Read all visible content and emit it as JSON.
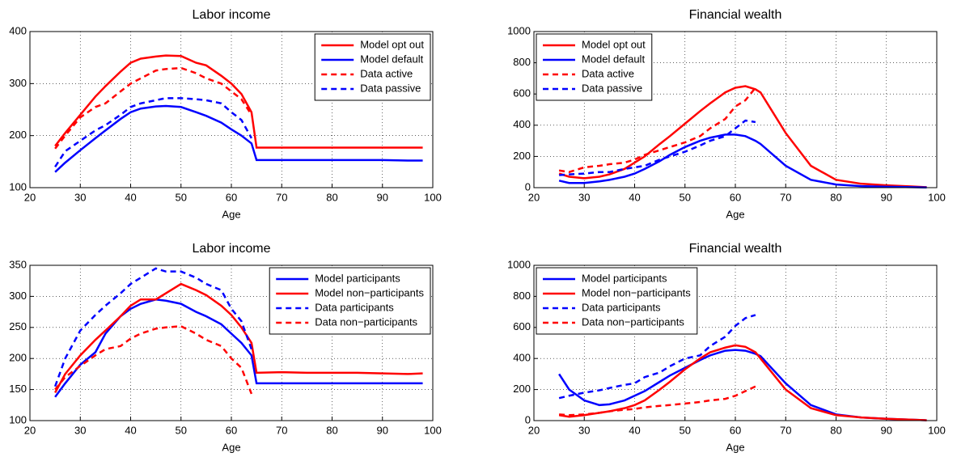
{
  "chart_data": [
    {
      "type": "line",
      "title": "Labor income",
      "x_label": "Age",
      "x": [
        25,
        27,
        30,
        33,
        35,
        38,
        40,
        42,
        45,
        47,
        50,
        53,
        55,
        58,
        60,
        62,
        64,
        65,
        70,
        75,
        80,
        85,
        90,
        95,
        98
      ],
      "xlim": [
        20,
        100
      ],
      "xticks": [
        20,
        30,
        40,
        50,
        60,
        70,
        80,
        90,
        100
      ],
      "ylim": [
        100,
        400
      ],
      "yticks": [
        100,
        200,
        300,
        400
      ],
      "grid": true,
      "legend": "upper right",
      "series": [
        {
          "name": "Model opt out",
          "color": "#ff0000",
          "style": "solid",
          "values": [
            180,
            205,
            240,
            275,
            295,
            323,
            340,
            348,
            352,
            354,
            353,
            340,
            335,
            315,
            300,
            280,
            245,
            177,
            177,
            177,
            177,
            177,
            177,
            177,
            177
          ]
        },
        {
          "name": "Model default",
          "color": "#0000ff",
          "style": "solid",
          "values": [
            130,
            148,
            172,
            195,
            210,
            232,
            245,
            252,
            256,
            257,
            255,
            245,
            238,
            225,
            212,
            200,
            185,
            153,
            153,
            153,
            153,
            153,
            153,
            152,
            152
          ]
        },
        {
          "name": "Data active",
          "color": "#ff0000",
          "style": "dashed",
          "values": [
            175,
            200,
            235,
            255,
            262,
            285,
            300,
            310,
            325,
            328,
            330,
            320,
            310,
            300,
            285,
            270,
            240,
            null,
            null,
            null,
            null,
            null,
            null,
            null,
            null
          ]
        },
        {
          "name": "Data passive",
          "color": "#0000ff",
          "style": "dashed",
          "values": [
            140,
            170,
            190,
            210,
            220,
            240,
            255,
            262,
            268,
            272,
            272,
            270,
            268,
            262,
            245,
            230,
            195,
            null,
            null,
            null,
            null,
            null,
            null,
            null,
            null
          ]
        }
      ]
    },
    {
      "type": "line",
      "title": "Financial wealth",
      "x_label": "Age",
      "x": [
        25,
        27,
        30,
        33,
        35,
        38,
        40,
        42,
        45,
        47,
        50,
        53,
        55,
        58,
        60,
        62,
        64,
        65,
        70,
        75,
        80,
        85,
        90,
        95,
        98
      ],
      "xlim": [
        20,
        100
      ],
      "xticks": [
        20,
        30,
        40,
        50,
        60,
        70,
        80,
        90,
        100
      ],
      "ylim": [
        0,
        1000
      ],
      "yticks": [
        0,
        200,
        400,
        600,
        800,
        1000
      ],
      "grid": true,
      "legend": "upper left",
      "series": [
        {
          "name": "Model opt out",
          "color": "#ff0000",
          "style": "solid",
          "values": [
            90,
            70,
            60,
            70,
            85,
            120,
            160,
            200,
            280,
            330,
            410,
            490,
            540,
            610,
            640,
            650,
            630,
            610,
            350,
            140,
            50,
            25,
            15,
            8,
            3
          ]
        },
        {
          "name": "Model default",
          "color": "#0000ff",
          "style": "solid",
          "values": [
            45,
            30,
            30,
            40,
            50,
            70,
            90,
            120,
            170,
            210,
            260,
            300,
            320,
            340,
            340,
            330,
            300,
            280,
            140,
            50,
            20,
            10,
            6,
            3,
            1
          ]
        },
        {
          "name": "Data active",
          "color": "#ff0000",
          "style": "dashed",
          "values": [
            110,
            100,
            130,
            140,
            150,
            160,
            180,
            210,
            240,
            260,
            290,
            330,
            380,
            440,
            520,
            560,
            640,
            null,
            null,
            null,
            null,
            null,
            null,
            null,
            null
          ]
        },
        {
          "name": "Data passive",
          "color": "#0000ff",
          "style": "dashed",
          "values": [
            80,
            85,
            90,
            100,
            100,
            120,
            130,
            140,
            180,
            200,
            230,
            270,
            300,
            330,
            380,
            430,
            420,
            null,
            null,
            null,
            null,
            null,
            null,
            null,
            null
          ]
        }
      ]
    },
    {
      "type": "line",
      "title": "Labor income",
      "x_label": "Age",
      "x": [
        25,
        27,
        30,
        33,
        35,
        38,
        40,
        42,
        45,
        47,
        50,
        53,
        55,
        58,
        60,
        62,
        64,
        65,
        70,
        75,
        80,
        85,
        90,
        95,
        98
      ],
      "xlim": [
        20,
        100
      ],
      "xticks": [
        20,
        30,
        40,
        50,
        60,
        70,
        80,
        90,
        100
      ],
      "ylim": [
        100,
        350
      ],
      "yticks": [
        100,
        150,
        200,
        250,
        300,
        350
      ],
      "grid": true,
      "legend": "upper right",
      "series": [
        {
          "name": "Model participants",
          "color": "#0000ff",
          "style": "solid",
          "values": [
            138,
            160,
            190,
            210,
            240,
            268,
            280,
            288,
            295,
            293,
            288,
            275,
            268,
            255,
            240,
            225,
            205,
            160,
            160,
            160,
            160,
            160,
            160,
            160,
            160
          ]
        },
        {
          "name": "Model non−participants",
          "color": "#ff0000",
          "style": "solid",
          "values": [
            145,
            175,
            205,
            230,
            245,
            268,
            285,
            295,
            295,
            305,
            320,
            310,
            302,
            285,
            270,
            250,
            225,
            177,
            178,
            177,
            177,
            177,
            176,
            175,
            176
          ]
        },
        {
          "name": "Data participants",
          "color": "#0000ff",
          "style": "dashed",
          "values": [
            155,
            200,
            245,
            270,
            285,
            305,
            320,
            330,
            345,
            340,
            340,
            330,
            320,
            310,
            280,
            260,
            215,
            null,
            null,
            null,
            null,
            null,
            null,
            null,
            null
          ]
        },
        {
          "name": "Data non−participants",
          "color": "#ff0000",
          "style": "dashed",
          "values": [
            150,
            170,
            188,
            205,
            215,
            220,
            232,
            240,
            248,
            250,
            252,
            240,
            230,
            220,
            200,
            185,
            143,
            null,
            null,
            null,
            null,
            null,
            null,
            null,
            null
          ]
        }
      ]
    },
    {
      "type": "line",
      "title": "Financial wealth",
      "x_label": "Age",
      "x": [
        25,
        27,
        30,
        33,
        35,
        38,
        40,
        42,
        45,
        47,
        50,
        53,
        55,
        58,
        60,
        62,
        64,
        65,
        70,
        75,
        80,
        85,
        90,
        95,
        98
      ],
      "xlim": [
        20,
        100
      ],
      "xticks": [
        20,
        30,
        40,
        50,
        60,
        70,
        80,
        90,
        100
      ],
      "ylim": [
        0,
        1000
      ],
      "yticks": [
        0,
        200,
        400,
        600,
        800,
        1000
      ],
      "grid": true,
      "legend": "upper left",
      "series": [
        {
          "name": "Model participants",
          "color": "#0000ff",
          "style": "solid",
          "values": [
            300,
            200,
            130,
            100,
            105,
            130,
            160,
            190,
            250,
            290,
            340,
            390,
            420,
            450,
            455,
            450,
            430,
            415,
            240,
            100,
            40,
            20,
            12,
            6,
            2
          ]
        },
        {
          "name": "Model non−participants",
          "color": "#ff0000",
          "style": "solid",
          "values": [
            35,
            25,
            35,
            50,
            60,
            80,
            100,
            130,
            200,
            250,
            330,
            400,
            440,
            470,
            485,
            475,
            440,
            400,
            200,
            80,
            35,
            20,
            12,
            6,
            2
          ]
        },
        {
          "name": "Data participants",
          "color": "#0000ff",
          "style": "dashed",
          "values": [
            145,
            160,
            180,
            195,
            210,
            230,
            240,
            280,
            310,
            350,
            400,
            420,
            480,
            540,
            610,
            660,
            680,
            null,
            null,
            null,
            null,
            null,
            null,
            null,
            null
          ]
        },
        {
          "name": "Data non−participants",
          "color": "#ff0000",
          "style": "dashed",
          "values": [
            40,
            35,
            40,
            50,
            60,
            70,
            75,
            85,
            95,
            100,
            110,
            120,
            130,
            140,
            160,
            190,
            220,
            null,
            null,
            null,
            null,
            null,
            null,
            null,
            null
          ]
        }
      ]
    }
  ]
}
